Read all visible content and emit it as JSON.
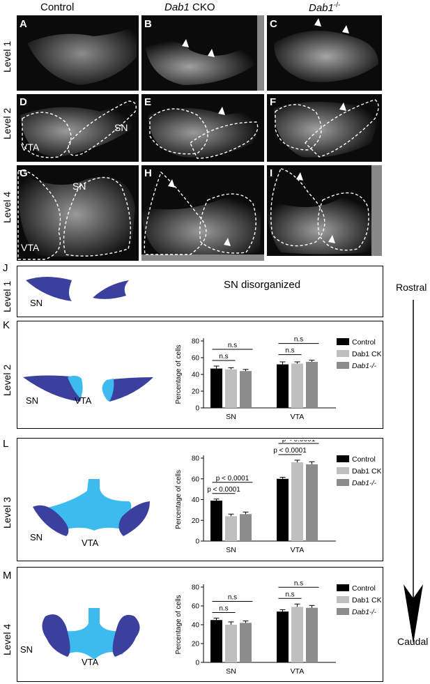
{
  "columns": {
    "control": "Control",
    "dab1_cko": "Dab1",
    "dab1_cko_suffix": " CKO",
    "dab1_ko": "Dab1",
    "dab1_ko_suffix": "-/-"
  },
  "rows": {
    "level1": "Level 1",
    "level2": "Level 2",
    "level3": "Level 3",
    "level4": "Level 4"
  },
  "panels": {
    "A": "A",
    "B": "B",
    "C": "C",
    "D": "D",
    "E": "E",
    "F": "F",
    "G": "G",
    "H": "H",
    "I": "I",
    "J": "J",
    "K": "K",
    "L": "L",
    "M": "M"
  },
  "micro_labels": {
    "sn": "SN",
    "vta": "VTA"
  },
  "schematic": {
    "sn": "SN",
    "vta": "VTA",
    "sn_disorganized": "SN disorganized"
  },
  "axis": {
    "rostral": "Rostral",
    "caudal": "Caudal"
  },
  "colors": {
    "control": "#000000",
    "dab1_cko": "#bfbfbf",
    "dab1_ko": "#8c8c8c",
    "sn_schematic": "#3b3f9e",
    "vta_schematic": "#3dbbef"
  },
  "chart_data": [
    {
      "type": "bar",
      "panel": "K",
      "categories": [
        "SN",
        "VTA"
      ],
      "ylabel": "Percentage of cells",
      "ylim": [
        0,
        80
      ],
      "yticks": [
        0,
        20,
        40,
        60,
        80
      ],
      "series": [
        {
          "name": "Control",
          "values": [
            47,
            52
          ],
          "errors": [
            3,
            3
          ]
        },
        {
          "name": "Dab1 CKO",
          "values": [
            46,
            53
          ],
          "errors": [
            2,
            2
          ]
        },
        {
          "name": "Dab1-/-",
          "values": [
            44,
            55
          ],
          "errors": [
            2,
            2
          ]
        }
      ],
      "legend": [
        "Control",
        "Dab1 CKO",
        "Dab1-/-"
      ],
      "annotations": [
        {
          "group": 0,
          "from": 0,
          "to": 1,
          "text": "n.s"
        },
        {
          "group": 0,
          "from": 0,
          "to": 2,
          "text": "n.s"
        },
        {
          "group": 1,
          "from": 0,
          "to": 1,
          "text": "n.s"
        },
        {
          "group": 1,
          "from": 0,
          "to": 2,
          "text": "n.s"
        }
      ]
    },
    {
      "type": "bar",
      "panel": "L",
      "categories": [
        "SN",
        "VTA"
      ],
      "ylabel": "Percentage of cells",
      "ylim": [
        0,
        80
      ],
      "yticks": [
        0,
        20,
        40,
        60,
        80
      ],
      "series": [
        {
          "name": "Control",
          "values": [
            39,
            60
          ],
          "errors": [
            1.5,
            1.5
          ]
        },
        {
          "name": "Dab1 CKO",
          "values": [
            24,
            76
          ],
          "errors": [
            2,
            2
          ]
        },
        {
          "name": "Dab1-/-",
          "values": [
            26,
            74
          ],
          "errors": [
            2,
            2.5
          ]
        }
      ],
      "legend": [
        "Control",
        "Dab1 CKO",
        "Dab1-/-"
      ],
      "annotations": [
        {
          "group": 0,
          "from": 0,
          "to": 1,
          "text": "p < 0.0001"
        },
        {
          "group": 0,
          "from": 0,
          "to": 2,
          "text": "p < 0.0001"
        },
        {
          "group": 1,
          "from": 0,
          "to": 1,
          "text": "p < 0.0001"
        },
        {
          "group": 1,
          "from": 0,
          "to": 2,
          "text": "p < 0.0001"
        }
      ]
    },
    {
      "type": "bar",
      "panel": "M",
      "categories": [
        "SN",
        "VTA"
      ],
      "ylabel": "Percentage of cells",
      "ylim": [
        0,
        80
      ],
      "yticks": [
        0,
        20,
        40,
        60,
        80
      ],
      "series": [
        {
          "name": "Control",
          "values": [
            45,
            54
          ],
          "errors": [
            2,
            2
          ]
        },
        {
          "name": "Dab1 CKO",
          "values": [
            40,
            59
          ],
          "errors": [
            3,
            3
          ]
        },
        {
          "name": "Dab1-/-",
          "values": [
            42,
            58
          ],
          "errors": [
            2,
            2.5
          ]
        }
      ],
      "legend": [
        "Control",
        "Dab1 CKO",
        "Dab1-/-"
      ],
      "annotations": [
        {
          "group": 0,
          "from": 0,
          "to": 1,
          "text": "n.s"
        },
        {
          "group": 0,
          "from": 0,
          "to": 2,
          "text": "n.s"
        },
        {
          "group": 1,
          "from": 0,
          "to": 1,
          "text": "n.s"
        },
        {
          "group": 1,
          "from": 0,
          "to": 2,
          "text": "n.s"
        }
      ]
    }
  ]
}
